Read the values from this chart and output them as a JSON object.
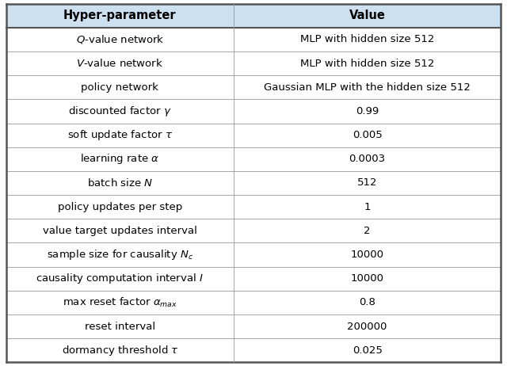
{
  "headers": [
    "Hyper-parameter",
    "Value"
  ],
  "rows": [
    [
      "$Q$-value network",
      "MLP with hidden size 512"
    ],
    [
      "$V$-value network",
      "MLP with hidden size 512"
    ],
    [
      "policy network",
      "Gaussian MLP with the hidden size 512"
    ],
    [
      "discounted factor $\\gamma$",
      "0.99"
    ],
    [
      "soft update factor $\\tau$",
      "0.005"
    ],
    [
      "learning rate $\\alpha$",
      "0.0003"
    ],
    [
      "batch size $N$",
      "512"
    ],
    [
      "policy updates per step",
      "1"
    ],
    [
      "value target updates interval",
      "2"
    ],
    [
      "sample size for causality $N_c$",
      "10000"
    ],
    [
      "causality computation interval $I$",
      "10000"
    ],
    [
      "max reset factor $\\alpha_{max}$",
      "0.8"
    ],
    [
      "reset interval",
      "200000"
    ],
    [
      "dormancy threshold $\\tau$",
      "0.025"
    ]
  ],
  "header_bg_color": "#cce0f0",
  "header_text_color": "#000000",
  "row_bg_color": "#ffffff",
  "border_color_thick": "#555555",
  "border_color_thin": "#999999",
  "text_color": "#000000",
  "header_fontsize": 10.5,
  "row_fontsize": 9.5,
  "col_split": 0.46,
  "figsize": [
    6.4,
    4.62
  ],
  "dpi": 100
}
